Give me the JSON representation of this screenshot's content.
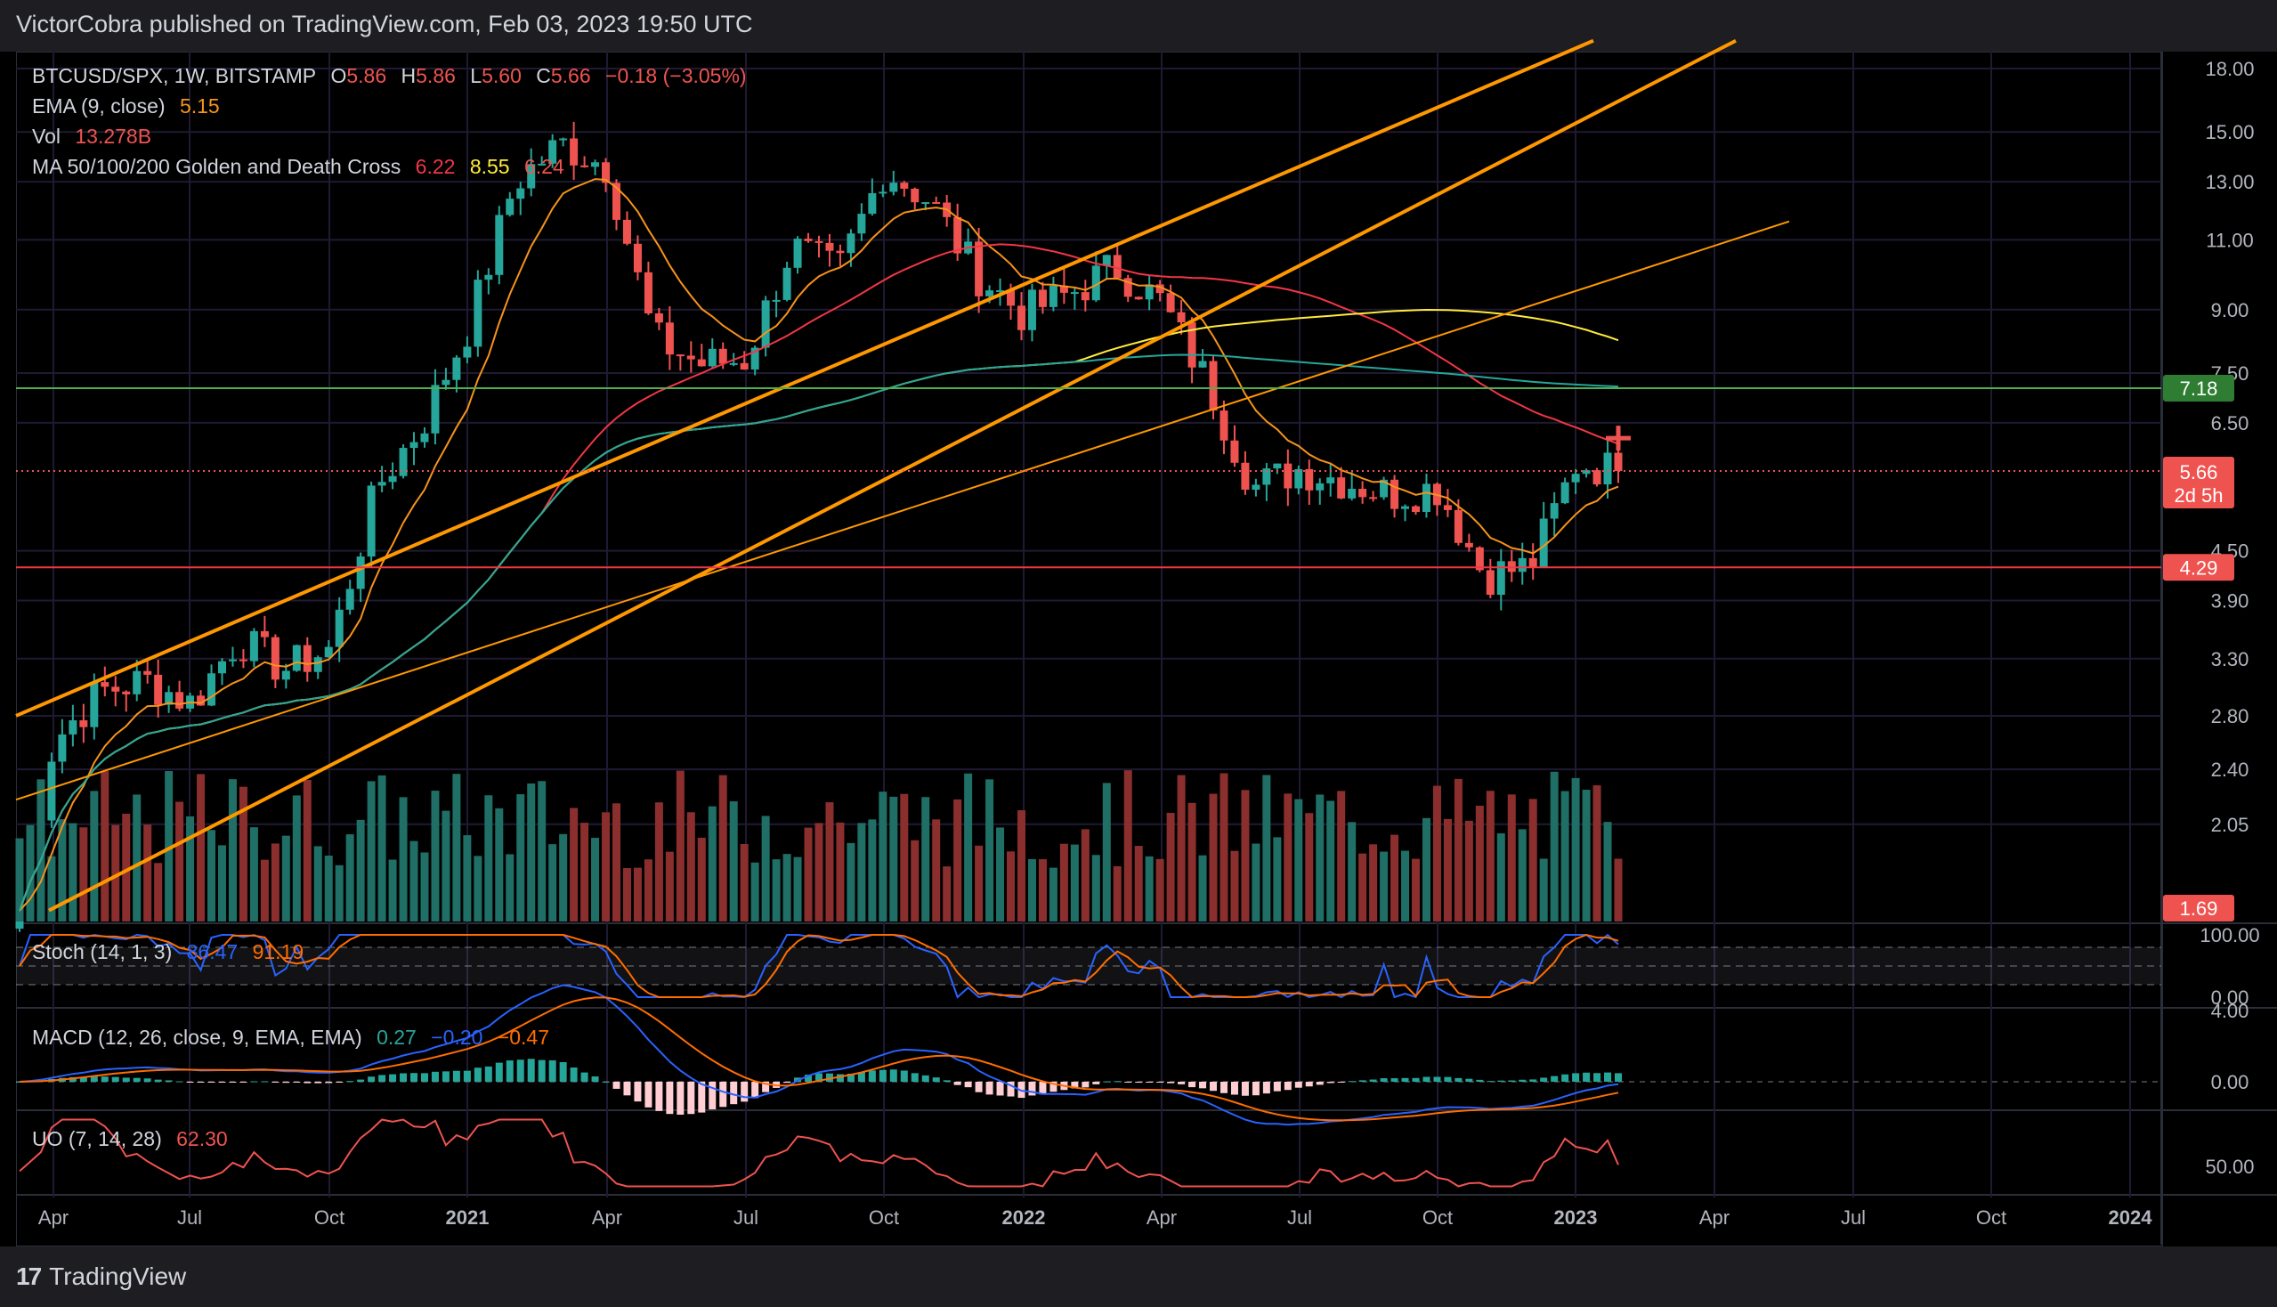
{
  "header": {
    "publisher": "VictorCobra published on TradingView.com, Feb 03, 2023 19:50 UTC"
  },
  "legend": {
    "symbol": "BTCUSD/SPX, 1W, BITSTAMP",
    "o_label": "O",
    "o": "5.86",
    "h_label": "H",
    "h": "5.86",
    "l_label": "L",
    "l": "5.60",
    "c_label": "C",
    "c": "5.66",
    "change": "−0.18 (−3.05%)",
    "ema_label": "EMA (9, close)",
    "ema": "5.15",
    "vol_label": "Vol",
    "vol": "13.278B",
    "ma_label": "MA 50/100/200 Golden and Death Cross",
    "ma50": "6.22",
    "ma100": "8.55",
    "ma200": "6.24",
    "stoch_label": "Stoch (14, 1, 3)",
    "stoch_k": "86.47",
    "stoch_d": "91.19",
    "macd_label": "MACD (12, 26, close, 9, EMA, EMA)",
    "macd_hist": "0.27",
    "macd_line": "−0.20",
    "macd_signal": "−0.47",
    "uo_label": "UO (7, 14, 28)",
    "uo": "62.30"
  },
  "price_axis": [
    "18.00",
    "15.00",
    "13.00",
    "11.00",
    "9.00",
    "7.50",
    "6.50",
    "4.50",
    "3.90",
    "3.30",
    "2.80",
    "2.40",
    "2.05"
  ],
  "tags": {
    "green": "7.18",
    "last": "5.66",
    "countdown": "2d 5h",
    "red": "4.29",
    "vol": "1.69"
  },
  "stoch_axis": [
    "100.00",
    "0.00"
  ],
  "macd_axis": [
    "4.00",
    "0.00"
  ],
  "uo_axis": [
    "50.00"
  ],
  "time_axis": [
    "Apr",
    "Jul",
    "Oct",
    "2021",
    "Apr",
    "Jul",
    "Oct",
    "2022",
    "Apr",
    "Jul",
    "Oct",
    "2023",
    "Apr",
    "Jul",
    "Oct",
    "2024"
  ],
  "footer": {
    "brand": "TradingView"
  },
  "colors": {
    "up": "#26a69a",
    "down": "#ef5350",
    "ema": "#f7931a",
    "ma50": "#f23645",
    "ma100": "#ffeb3b",
    "ma200": "#26a69a",
    "trend": "#ff9800",
    "support": "#f23645",
    "resistance": "#4caf50"
  },
  "chart_data": {
    "type": "candlestick",
    "symbol": "BTCUSD/SPX",
    "interval": "1W",
    "y_scale": "log",
    "horizontal_levels": [
      7.18,
      4.29
    ],
    "candles_approx": [
      {
        "date": "2020-03",
        "c": 1.6
      },
      {
        "date": "2020-04",
        "c": 2.6
      },
      {
        "date": "2020-05",
        "c": 3.0
      },
      {
        "date": "2020-06",
        "c": 3.1
      },
      {
        "date": "2020-07",
        "c": 2.9
      },
      {
        "date": "2020-08",
        "c": 3.5
      },
      {
        "date": "2020-09",
        "c": 3.2
      },
      {
        "date": "2020-10",
        "c": 3.4
      },
      {
        "date": "2020-11",
        "c": 5.4
      },
      {
        "date": "2020-12",
        "c": 6.5
      },
      {
        "date": "2021-01",
        "c": 8.6
      },
      {
        "date": "2021-02",
        "c": 13.0
      },
      {
        "date": "2021-03",
        "c": 14.5
      },
      {
        "date": "2021-04",
        "c": 13.6
      },
      {
        "date": "2021-05",
        "c": 8.3
      },
      {
        "date": "2021-06",
        "c": 7.7
      },
      {
        "date": "2021-07",
        "c": 7.8
      },
      {
        "date": "2021-08",
        "c": 10.8
      },
      {
        "date": "2021-09",
        "c": 10.0
      },
      {
        "date": "2021-10",
        "c": 13.5
      },
      {
        "date": "2021-11",
        "c": 12.3
      },
      {
        "date": "2021-12",
        "c": 10.0
      },
      {
        "date": "2022-01",
        "c": 8.9
      },
      {
        "date": "2022-02",
        "c": 9.4
      },
      {
        "date": "2022-03",
        "c": 10.2
      },
      {
        "date": "2022-04",
        "c": 9.2
      },
      {
        "date": "2022-05",
        "c": 7.3
      },
      {
        "date": "2022-06",
        "c": 5.4
      },
      {
        "date": "2022-07",
        "c": 5.7
      },
      {
        "date": "2022-08",
        "c": 5.5
      },
      {
        "date": "2022-09",
        "c": 5.3
      },
      {
        "date": "2022-10",
        "c": 5.4
      },
      {
        "date": "2022-11",
        "c": 4.2
      },
      {
        "date": "2022-12",
        "c": 4.3
      },
      {
        "date": "2023-01",
        "c": 5.8
      },
      {
        "date": "2023-02",
        "c": 5.66
      }
    ]
  }
}
